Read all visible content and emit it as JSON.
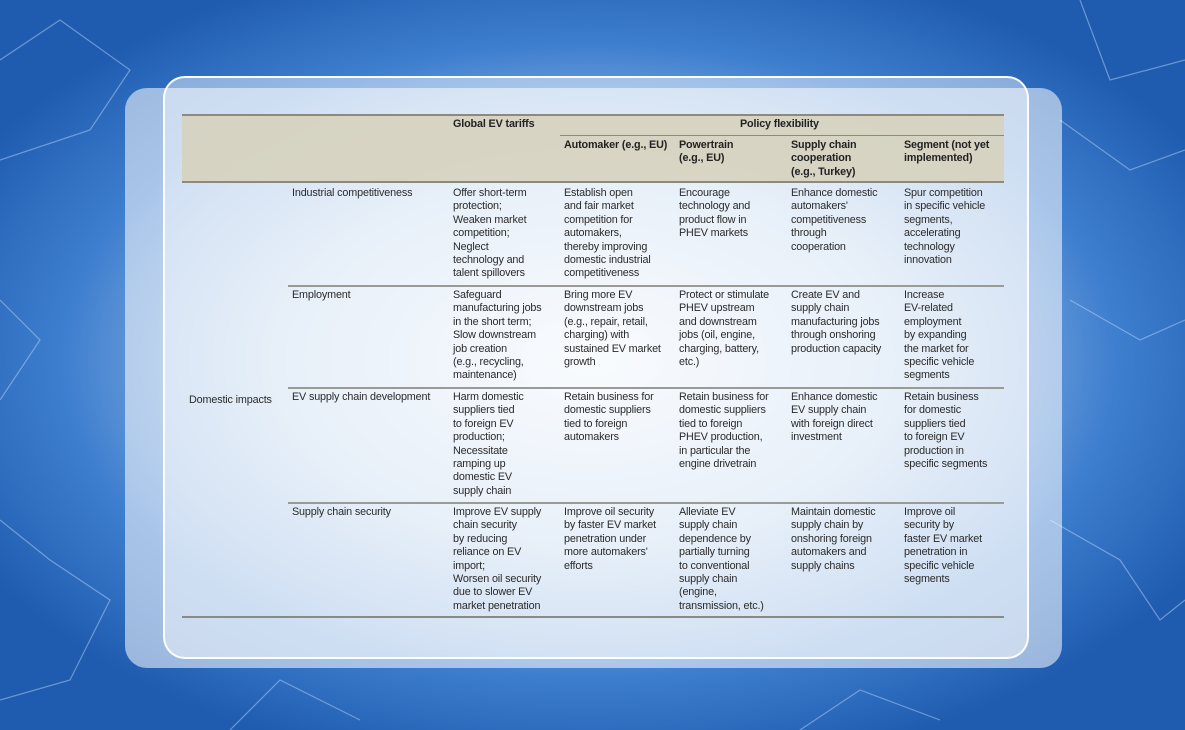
{
  "table": {
    "header": {
      "tariffs": "Global EV tariffs",
      "policy": "Policy flexibility",
      "subcolumns": [
        "Automaker (e.g., EU)",
        "Powertrain\n(e.g., EU)",
        "Supply chain\ncooperation\n(e.g., Turkey)",
        "Segment (not yet\nimplemented)"
      ]
    },
    "group_label": "Domestic impacts",
    "rows": [
      {
        "label": "Industrial competitiveness",
        "cells": [
          "Offer short-term\nprotection;\nWeaken market\ncompetition;\nNeglect\ntechnology and\ntalent spillovers",
          "Establish open\nand fair market\ncompetition for\nautomakers,\nthereby improving\ndomestic industrial\ncompetitiveness",
          "Encourage\ntechnology and\nproduct flow in\nPHEV markets",
          "Enhance domestic\nautomakers'\ncompetitiveness\nthrough\ncooperation",
          "Spur competition\nin specific vehicle\nsegments,\naccelerating\ntechnology\ninnovation"
        ]
      },
      {
        "label": "Employment",
        "cells": [
          "Safeguard\nmanufacturing jobs\nin the short term;\nSlow downstream\njob creation\n(e.g., recycling,\nmaintenance)",
          "Bring more EV\ndownstream jobs\n(e.g., repair, retail,\ncharging) with\nsustained EV market\ngrowth",
          "Protect or stimulate\nPHEV upstream\nand downstream\njobs (oil, engine,\ncharging, battery,\netc.)",
          "Create EV and\nsupply chain\nmanufacturing jobs\nthrough onshoring\nproduction capacity",
          "Increase\nEV-related\nemployment\nby expanding\nthe market for\nspecific vehicle\nsegments"
        ]
      },
      {
        "label": "EV supply chain development",
        "cells": [
          "Harm domestic\nsuppliers tied\nto foreign EV\nproduction;\nNecessitate\nramping up\ndomestic EV\nsupply chain",
          "Retain business for\ndomestic suppliers\ntied to foreign\nautomakers",
          "Retain business for\ndomestic suppliers\ntied to foreign\nPHEV production,\nin particular the\nengine drivetrain",
          "Enhance domestic\nEV supply chain\nwith foreign direct\ninvestment",
          "Retain business\nfor domestic\nsuppliers tied\nto foreign EV\nproduction in\nspecific segments"
        ]
      },
      {
        "label": "Supply chain security",
        "cells": [
          "Improve EV supply\nchain security\nby reducing\nreliance on EV\nimport;\nWorsen oil security\ndue to slower EV\nmarket penetration",
          "Improve oil security\nby faster EV market\npenetration under\nmore automakers'\nefforts",
          "Alleviate EV\nsupply chain\ndependence by\npartially turning\nto conventional\nsupply chain\n(engine,\ntransmission, etc.)",
          "Maintain domestic\nsupply chain by\nonshoring foreign\nautomakers and\nsupply chains",
          "Improve oil\nsecurity by\nfaster EV market\npenetration in\nspecific vehicle\nsegments"
        ]
      }
    ]
  },
  "colors": {
    "header_bg": "#d6d1be",
    "rule": "#8a8a82",
    "background": "#2f6cc0"
  }
}
